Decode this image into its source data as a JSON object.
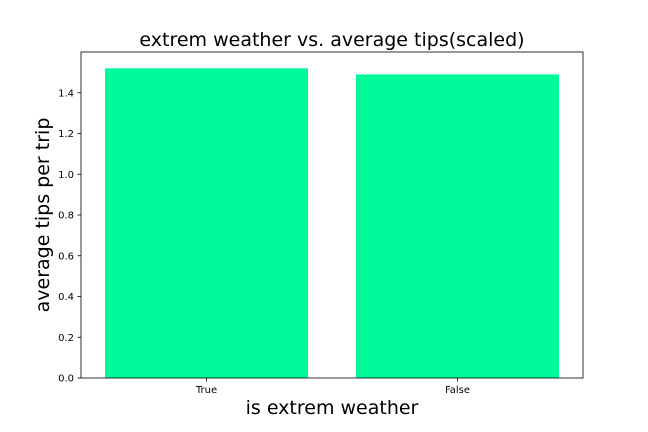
{
  "chart_data": {
    "type": "bar",
    "title": "extrem weather vs. average tips(scaled)",
    "xlabel": "is extrem weather",
    "ylabel": "average tips per trip",
    "categories": [
      "True",
      "False"
    ],
    "values": [
      1.52,
      1.49
    ],
    "ylim": [
      0,
      1.6
    ],
    "yticks": [
      "0.0",
      "0.2",
      "0.4",
      "0.6",
      "0.8",
      "1.0",
      "1.2",
      "1.4"
    ],
    "bar_color": "#00fa9a",
    "grid": false,
    "legend": "none"
  }
}
